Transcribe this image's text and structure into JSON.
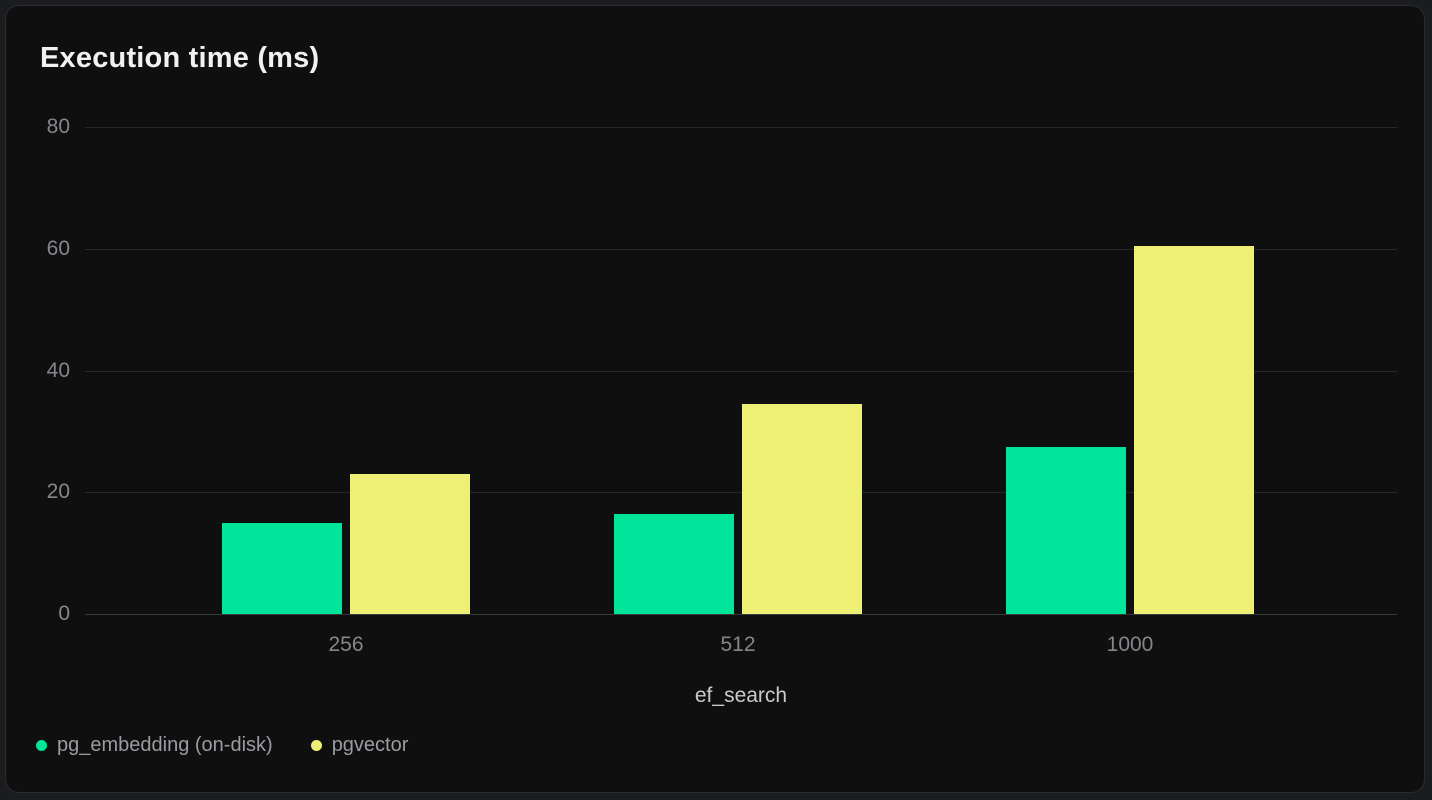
{
  "chart_data": {
    "type": "bar",
    "title": "Execution time (ms)",
    "xlabel": "ef_search",
    "ylabel": "",
    "categories": [
      "256",
      "512",
      "1000"
    ],
    "series": [
      {
        "name": "pg_embedding (on-disk)",
        "color": "#00E599",
        "values": [
          15.0,
          16.5,
          27.5
        ]
      },
      {
        "name": "pgvector",
        "color": "#EEF075",
        "values": [
          23.0,
          34.5,
          60.5
        ]
      }
    ],
    "ylim": [
      0,
      80
    ],
    "yticks": [
      0,
      20,
      40,
      60,
      80
    ],
    "grid": "horizontal",
    "legend_position": "bottom-left"
  },
  "colors": {
    "card_background": "#0e0f0e",
    "page_background": "#1b1c1f",
    "gridline": "#272927",
    "axis_tick_text": "#85868c",
    "axis_title_text": "#c9cacd",
    "title_text": "#f1f1f3",
    "legend_text": "#9b9ca2"
  }
}
